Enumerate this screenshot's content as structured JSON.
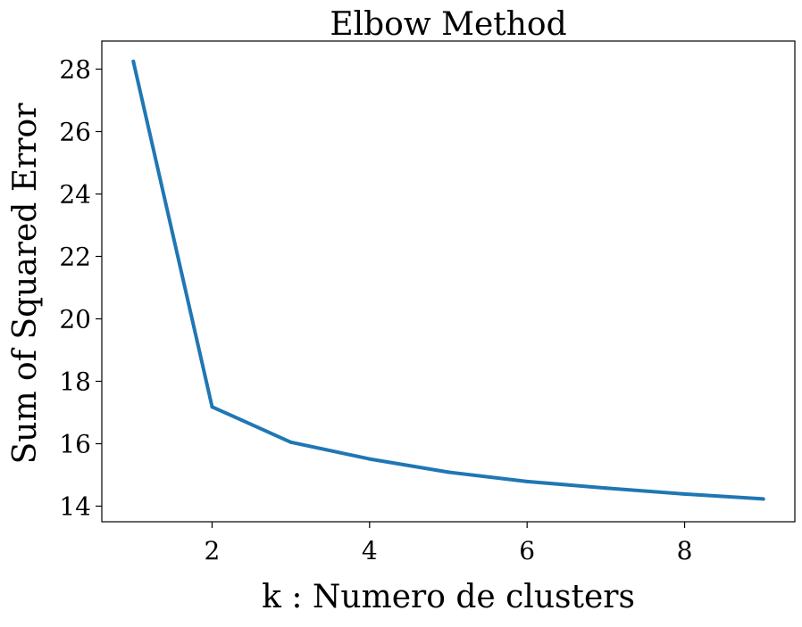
{
  "chart_data": {
    "type": "line",
    "title": "Elbow Method",
    "xlabel": "k : Numero de clusters",
    "ylabel": "Sum of Squared Error",
    "x": [
      1,
      2,
      3,
      4,
      5,
      6,
      7,
      8,
      9
    ],
    "series": [
      {
        "values": [
          28.25,
          17.18,
          16.05,
          15.51,
          15.09,
          14.79,
          14.58,
          14.39,
          14.23
        ],
        "color": "#1f77b4"
      }
    ],
    "xlim": [
      0.6,
      9.4
    ],
    "ylim": [
      13.5,
      28.9
    ],
    "xticks": [
      2,
      4,
      6,
      8
    ],
    "yticks": [
      14,
      16,
      18,
      20,
      22,
      24,
      26,
      28
    ],
    "grid": false,
    "legend": false
  }
}
